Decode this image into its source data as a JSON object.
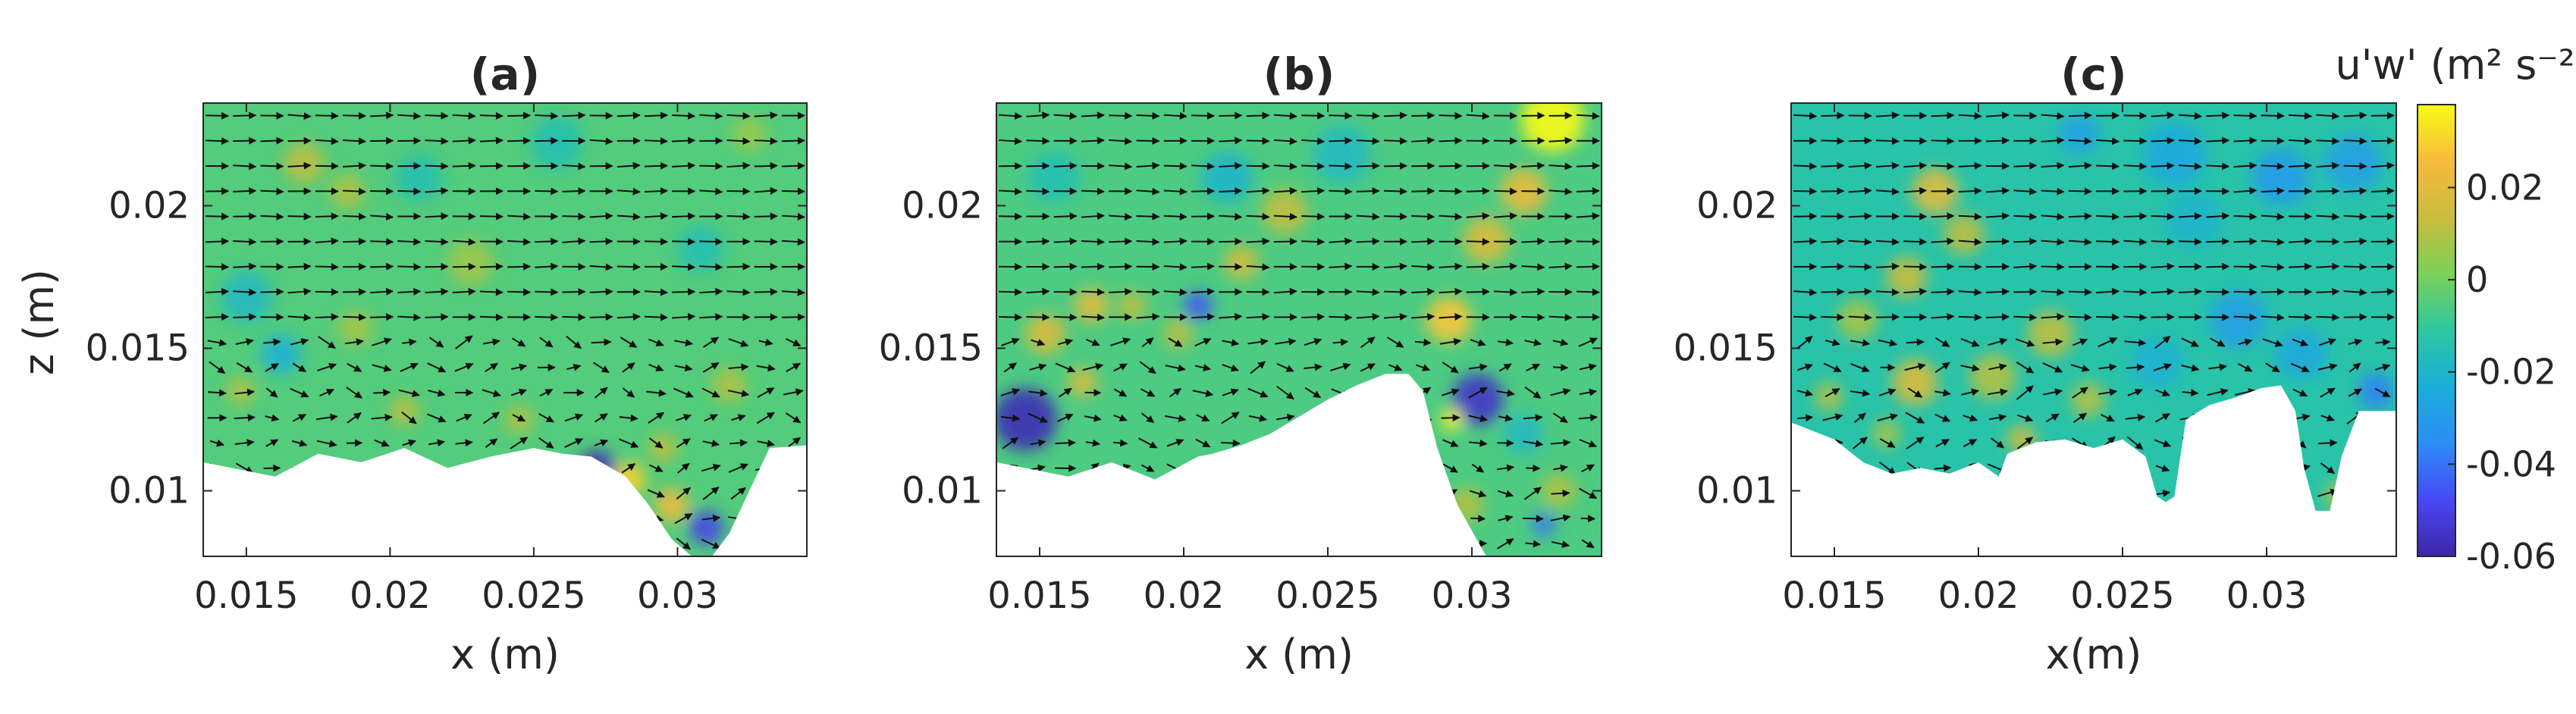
{
  "colorbar": {
    "label": "u'w' (m² s⁻²)",
    "range": [
      -0.06,
      0.038
    ],
    "ticks": [
      0.02,
      0,
      -0.02,
      -0.04,
      -0.06
    ],
    "tick_labels": [
      "0.02",
      "0",
      "-0.02",
      "-0.04",
      "-0.06"
    ],
    "colormap": [
      "#3e26a8",
      "#4748f5",
      "#2d8df6",
      "#1aaed9",
      "#2cc7a0",
      "#7cd157",
      "#c9bc3d",
      "#f7ba3d",
      "#f9fb15"
    ]
  },
  "chart_data": [
    {
      "type": "heatmap",
      "title": "(a)",
      "xlabel": "x (m)",
      "ylabel": "z (m)",
      "xlim": [
        0.0135,
        0.0345
      ],
      "ylim": [
        0.0077,
        0.0236
      ],
      "xticks": [
        0.015,
        0.02,
        0.025,
        0.03
      ],
      "xtick_labels": [
        "0.015",
        "0.02",
        "0.025",
        "0.03"
      ],
      "yticks": [
        0.01,
        0.015,
        0.02
      ],
      "ytick_labels": [
        "0.01",
        "0.015",
        "0.02"
      ],
      "overlay": "velocity vectors (quiver)",
      "background_value": -0.005,
      "bed_profile": {
        "x": [
          0.0135,
          0.016,
          0.0175,
          0.019,
          0.0205,
          0.022,
          0.0235,
          0.025,
          0.026,
          0.027,
          0.0282,
          0.029,
          0.0298,
          0.0305,
          0.0312,
          0.0318,
          0.0325,
          0.0332,
          0.0345
        ],
        "z": [
          0.011,
          0.0105,
          0.0113,
          0.011,
          0.0115,
          0.0108,
          0.0112,
          0.0115,
          0.0113,
          0.0112,
          0.0105,
          0.0095,
          0.0083,
          0.0077,
          0.0077,
          0.0085,
          0.01,
          0.0115,
          0.0116
        ]
      },
      "features": [
        {
          "x": 0.017,
          "z": 0.0215,
          "value": 0.012,
          "r": 0.0007
        },
        {
          "x": 0.0185,
          "z": 0.0205,
          "value": 0.01,
          "r": 0.0006
        },
        {
          "x": 0.0188,
          "z": 0.0157,
          "value": 0.008,
          "r": 0.0006
        },
        {
          "x": 0.0162,
          "z": 0.0148,
          "value": -0.022,
          "r": 0.0007
        },
        {
          "x": 0.0148,
          "z": 0.0135,
          "value": 0.01,
          "r": 0.0005
        },
        {
          "x": 0.021,
          "z": 0.021,
          "value": -0.015,
          "r": 0.0008
        },
        {
          "x": 0.0228,
          "z": 0.018,
          "value": 0.007,
          "r": 0.0008
        },
        {
          "x": 0.0205,
          "z": 0.0128,
          "value": 0.012,
          "r": 0.0005
        },
        {
          "x": 0.0245,
          "z": 0.0125,
          "value": 0.01,
          "r": 0.0005
        },
        {
          "x": 0.0272,
          "z": 0.0107,
          "value": -0.058,
          "r": 0.0007
        },
        {
          "x": 0.0283,
          "z": 0.0104,
          "value": 0.03,
          "r": 0.0006
        },
        {
          "x": 0.0298,
          "z": 0.0095,
          "value": 0.024,
          "r": 0.0006
        },
        {
          "x": 0.031,
          "z": 0.0087,
          "value": -0.05,
          "r": 0.0006
        },
        {
          "x": 0.0295,
          "z": 0.0115,
          "value": 0.012,
          "r": 0.0005
        },
        {
          "x": 0.0318,
          "z": 0.0137,
          "value": 0.01,
          "r": 0.0006
        },
        {
          "x": 0.0308,
          "z": 0.0185,
          "value": -0.015,
          "r": 0.0008
        },
        {
          "x": 0.0258,
          "z": 0.0222,
          "value": -0.015,
          "r": 0.0009
        },
        {
          "x": 0.015,
          "z": 0.0168,
          "value": -0.018,
          "r": 0.0009
        },
        {
          "x": 0.0325,
          "z": 0.0225,
          "value": 0.006,
          "r": 0.0006
        }
      ]
    },
    {
      "type": "heatmap",
      "title": "(b)",
      "xlabel": "x (m)",
      "ylabel": "",
      "xlim": [
        0.0135,
        0.0345
      ],
      "ylim": [
        0.0077,
        0.0236
      ],
      "xticks": [
        0.015,
        0.02,
        0.025,
        0.03
      ],
      "xtick_labels": [
        "0.015",
        "0.02",
        "0.025",
        "0.03"
      ],
      "yticks": [
        0.01,
        0.015,
        0.02
      ],
      "ytick_labels": [
        "0.01",
        "0.015",
        "0.02"
      ],
      "overlay": "velocity vectors (quiver)",
      "background_value": -0.006,
      "bed_profile": {
        "x": [
          0.0135,
          0.016,
          0.0175,
          0.019,
          0.0205,
          0.021,
          0.022,
          0.023,
          0.024,
          0.025,
          0.026,
          0.027,
          0.0278,
          0.0283,
          0.0288,
          0.0295,
          0.0305,
          0.0345
        ],
        "z": [
          0.011,
          0.0105,
          0.011,
          0.0104,
          0.0112,
          0.0113,
          0.0116,
          0.012,
          0.0126,
          0.0132,
          0.0137,
          0.0141,
          0.0141,
          0.0135,
          0.0115,
          0.0095,
          0.0077,
          0.0077
        ]
      },
      "features": [
        {
          "x": 0.0145,
          "z": 0.0125,
          "value": -0.058,
          "r": 0.0011
        },
        {
          "x": 0.0152,
          "z": 0.0155,
          "value": 0.018,
          "r": 0.0007
        },
        {
          "x": 0.0168,
          "z": 0.0165,
          "value": 0.02,
          "r": 0.0006
        },
        {
          "x": 0.0182,
          "z": 0.0165,
          "value": 0.012,
          "r": 0.0005
        },
        {
          "x": 0.0165,
          "z": 0.0138,
          "value": 0.018,
          "r": 0.0005
        },
        {
          "x": 0.0205,
          "z": 0.0165,
          "value": -0.045,
          "r": 0.0005
        },
        {
          "x": 0.0198,
          "z": 0.0155,
          "value": 0.012,
          "r": 0.0005
        },
        {
          "x": 0.022,
          "z": 0.018,
          "value": 0.016,
          "r": 0.0006
        },
        {
          "x": 0.0235,
          "z": 0.0198,
          "value": 0.012,
          "r": 0.0008
        },
        {
          "x": 0.0215,
          "z": 0.021,
          "value": -0.02,
          "r": 0.0009
        },
        {
          "x": 0.0292,
          "z": 0.016,
          "value": 0.028,
          "r": 0.0008
        },
        {
          "x": 0.0305,
          "z": 0.0188,
          "value": 0.018,
          "r": 0.0008
        },
        {
          "x": 0.0318,
          "z": 0.0205,
          "value": 0.022,
          "r": 0.0008
        },
        {
          "x": 0.0328,
          "z": 0.023,
          "value": 0.04,
          "r": 0.0011
        },
        {
          "x": 0.0302,
          "z": 0.0132,
          "value": -0.055,
          "r": 0.0009
        },
        {
          "x": 0.0293,
          "z": 0.0125,
          "value": 0.036,
          "r": 0.0004
        },
        {
          "x": 0.0318,
          "z": 0.012,
          "value": -0.018,
          "r": 0.0007
        },
        {
          "x": 0.033,
          "z": 0.01,
          "value": 0.01,
          "r": 0.0006
        },
        {
          "x": 0.0325,
          "z": 0.0088,
          "value": -0.04,
          "r": 0.0004
        },
        {
          "x": 0.0298,
          "z": 0.0095,
          "value": 0.01,
          "r": 0.0006
        },
        {
          "x": 0.0255,
          "z": 0.0218,
          "value": -0.018,
          "r": 0.001
        },
        {
          "x": 0.0155,
          "z": 0.021,
          "value": -0.015,
          "r": 0.0009
        }
      ]
    },
    {
      "type": "heatmap",
      "title": "(c)",
      "xlabel": "x(m)",
      "ylabel": "",
      "xlim": [
        0.0135,
        0.0345
      ],
      "ylim": [
        0.0077,
        0.0236
      ],
      "xticks": [
        0.015,
        0.02,
        0.025,
        0.03
      ],
      "xtick_labels": [
        "0.015",
        "0.02",
        "0.025",
        "0.03"
      ],
      "yticks": [
        0.01,
        0.015,
        0.02
      ],
      "ytick_labels": [
        "0.01",
        "0.015",
        "0.02"
      ],
      "overlay": "velocity vectors (quiver)",
      "background_value": -0.013,
      "bed_profile": {
        "x": [
          0.0135,
          0.015,
          0.016,
          0.017,
          0.018,
          0.019,
          0.02,
          0.0207,
          0.021,
          0.022,
          0.023,
          0.024,
          0.025,
          0.0258,
          0.0262,
          0.0265,
          0.0268,
          0.0272,
          0.028,
          0.029,
          0.0298,
          0.0305,
          0.031,
          0.0313,
          0.0317,
          0.0322,
          0.0326,
          0.0332,
          0.0345
        ],
        "z": [
          0.0124,
          0.0118,
          0.011,
          0.0106,
          0.0108,
          0.0106,
          0.011,
          0.0105,
          0.0113,
          0.0117,
          0.0118,
          0.0115,
          0.0118,
          0.0112,
          0.0098,
          0.0096,
          0.0098,
          0.0125,
          0.013,
          0.0133,
          0.0136,
          0.0137,
          0.0128,
          0.0108,
          0.0093,
          0.0093,
          0.0112,
          0.0128,
          0.0128
        ]
      },
      "features": [
        {
          "x": 0.0185,
          "z": 0.0205,
          "value": 0.02,
          "r": 0.0008
        },
        {
          "x": 0.0195,
          "z": 0.019,
          "value": 0.012,
          "r": 0.0007
        },
        {
          "x": 0.0175,
          "z": 0.0175,
          "value": 0.014,
          "r": 0.0007
        },
        {
          "x": 0.0158,
          "z": 0.016,
          "value": 0.008,
          "r": 0.0007
        },
        {
          "x": 0.0178,
          "z": 0.0138,
          "value": 0.018,
          "r": 0.0008
        },
        {
          "x": 0.0205,
          "z": 0.014,
          "value": 0.01,
          "r": 0.0008
        },
        {
          "x": 0.0225,
          "z": 0.0155,
          "value": 0.012,
          "r": 0.0008
        },
        {
          "x": 0.0238,
          "z": 0.0132,
          "value": 0.01,
          "r": 0.0006
        },
        {
          "x": 0.0215,
          "z": 0.0118,
          "value": 0.016,
          "r": 0.0005
        },
        {
          "x": 0.0148,
          "z": 0.0133,
          "value": 0.01,
          "r": 0.0005
        },
        {
          "x": 0.0168,
          "z": 0.012,
          "value": 0.008,
          "r": 0.0005
        },
        {
          "x": 0.0262,
          "z": 0.0145,
          "value": -0.022,
          "r": 0.0009
        },
        {
          "x": 0.029,
          "z": 0.016,
          "value": -0.028,
          "r": 0.001
        },
        {
          "x": 0.0312,
          "z": 0.0148,
          "value": -0.025,
          "r": 0.0009
        },
        {
          "x": 0.0338,
          "z": 0.0135,
          "value": -0.038,
          "r": 0.0006
        },
        {
          "x": 0.0325,
          "z": 0.0098,
          "value": 0.01,
          "r": 0.0005
        },
        {
          "x": 0.0268,
          "z": 0.0218,
          "value": -0.025,
          "r": 0.0011
        },
        {
          "x": 0.0305,
          "z": 0.021,
          "value": -0.03,
          "r": 0.001
        },
        {
          "x": 0.033,
          "z": 0.0215,
          "value": -0.028,
          "r": 0.001
        },
        {
          "x": 0.0235,
          "z": 0.0225,
          "value": -0.028,
          "r": 0.0007
        },
        {
          "x": 0.0275,
          "z": 0.0195,
          "value": -0.02,
          "r": 0.001
        }
      ]
    }
  ]
}
